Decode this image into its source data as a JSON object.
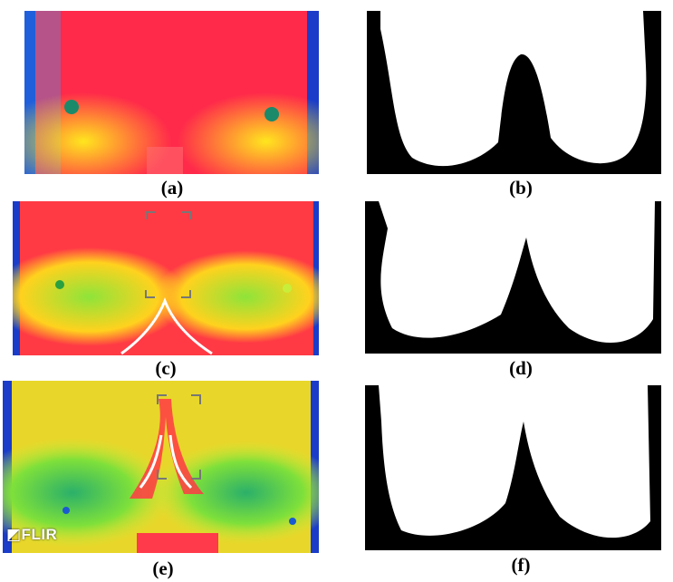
{
  "figure": {
    "captions": [
      "(a)",
      "(b)",
      "(c)",
      "(d)",
      "(e)",
      "(f)"
    ],
    "watermark": "◩FLIR",
    "colors": {
      "thermal_background": "#1a3cc8",
      "thermal_hot": "#ff2a4a",
      "thermal_warm": "#ffd21e",
      "thermal_cool": "#6fe23c",
      "mask_background": "#000000",
      "mask_foreground": "#ffffff"
    }
  }
}
